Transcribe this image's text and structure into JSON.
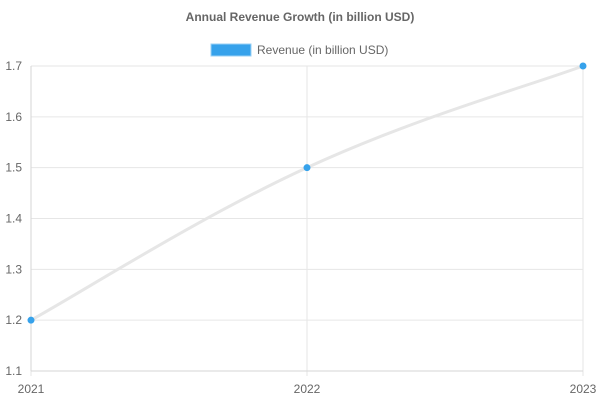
{
  "chart_data": {
    "type": "line",
    "title": "Annual Revenue Growth (in billion USD)",
    "xlabel": "",
    "ylabel": "",
    "categories": [
      "2021",
      "2022",
      "2023"
    ],
    "series": [
      {
        "name": "Revenue (in billion USD)",
        "values": [
          1.2,
          1.5,
          1.7
        ]
      }
    ],
    "ylim": [
      1.1,
      1.7
    ],
    "yticks": [
      "1.1",
      "1.2",
      "1.3",
      "1.4",
      "1.5",
      "1.6",
      "1.7"
    ],
    "grid": true,
    "legend_position": "top",
    "colors": {
      "line": "#e6e6e6",
      "point": "#36a2eb",
      "legend_fill": "#36a2eb",
      "legend_border": "#9ad0f5",
      "grid": "#e6e6e6",
      "text": "#666666"
    }
  }
}
